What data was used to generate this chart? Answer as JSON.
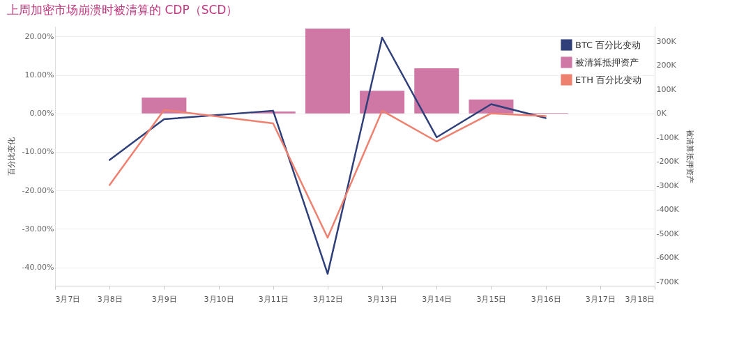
{
  "chart_data": {
    "type": "line",
    "title": "上周加密市场崩溃时被清算的 CDP（SCD）",
    "ylabel": "百分比变化",
    "y2label": "被清算抵押资产",
    "xlim": [
      "--03-07",
      "--03-18"
    ],
    "xticks": [
      {
        "value": "--03-07",
        "label": "3月7日"
      },
      {
        "value": "--03-08",
        "label": "3月8日"
      },
      {
        "value": "--03-09",
        "label": "3月9日"
      },
      {
        "value": "--03-10",
        "label": "3月10日"
      },
      {
        "value": "--03-11",
        "label": "3月11日"
      },
      {
        "value": "--03-12",
        "label": "3月12日"
      },
      {
        "value": "--03-13",
        "label": "3月13日"
      },
      {
        "value": "--03-14",
        "label": "3月14日"
      },
      {
        "value": "--03-15",
        "label": "3月15日"
      },
      {
        "value": "--03-16",
        "label": "3月16日"
      },
      {
        "value": "--03-17",
        "label": "3月17日"
      },
      {
        "value": "--03-18",
        "label": "3月18日"
      }
    ],
    "ylim": [
      -44.8,
      22.6
    ],
    "yticks": [
      {
        "value": -40,
        "label": "-40.00%"
      },
      {
        "value": -30,
        "label": "-30.00%"
      },
      {
        "value": -20,
        "label": "-20.00%"
      },
      {
        "value": -10,
        "label": "-10.00%"
      },
      {
        "value": 0,
        "label": "0.00%"
      },
      {
        "value": 10,
        "label": "10.00%"
      },
      {
        "value": 20,
        "label": "20.00%"
      }
    ],
    "y2lim": [
      -716,
      361
    ],
    "y2ticks": [
      {
        "value": -700,
        "label": "-700K"
      },
      {
        "value": -600,
        "label": "-600K"
      },
      {
        "value": -500,
        "label": "-500K"
      },
      {
        "value": -400,
        "label": "-400K"
      },
      {
        "value": -300,
        "label": "-300K"
      },
      {
        "value": -200,
        "label": "-200K"
      },
      {
        "value": -100,
        "label": "-100K"
      },
      {
        "value": 0,
        "label": "0K"
      },
      {
        "value": 100,
        "label": "100K"
      },
      {
        "value": 200,
        "label": "200K"
      },
      {
        "value": 300,
        "label": "300K"
      }
    ],
    "grid": "y",
    "legend": "top right",
    "series": [
      {
        "name": "BTC 百分比变动",
        "color": "#2f3f7a",
        "x": [
          "--03-08",
          "--03-09",
          "--03-11",
          "--03-12",
          "--03-13",
          "--03-14",
          "--03-15",
          "--03-16"
        ],
        "values": [
          -12.1,
          -1.5,
          0.7,
          -41.7,
          19.7,
          -6.2,
          2.4,
          -1.2
        ]
      },
      {
        "name": "被清算抵押资产",
        "type": "bar",
        "axis": "y2",
        "color": "#cf77a5",
        "x": [
          "--03-09",
          "--03-11",
          "--03-12",
          "--03-13",
          "--03-14",
          "--03-15",
          "--03-16"
        ],
        "values": [
          66,
          8,
          352,
          94,
          187,
          58,
          2
        ]
      },
      {
        "name": "ETH 百分比变动",
        "color": "#ee8070",
        "x": [
          "--03-08",
          "--03-09",
          "--03-11",
          "--03-12",
          "--03-13",
          "--03-14",
          "--03-15",
          "--03-16"
        ],
        "values": [
          -18.6,
          0.9,
          -2.6,
          -32.3,
          0.7,
          -7.3,
          0,
          -0.7
        ]
      }
    ]
  }
}
